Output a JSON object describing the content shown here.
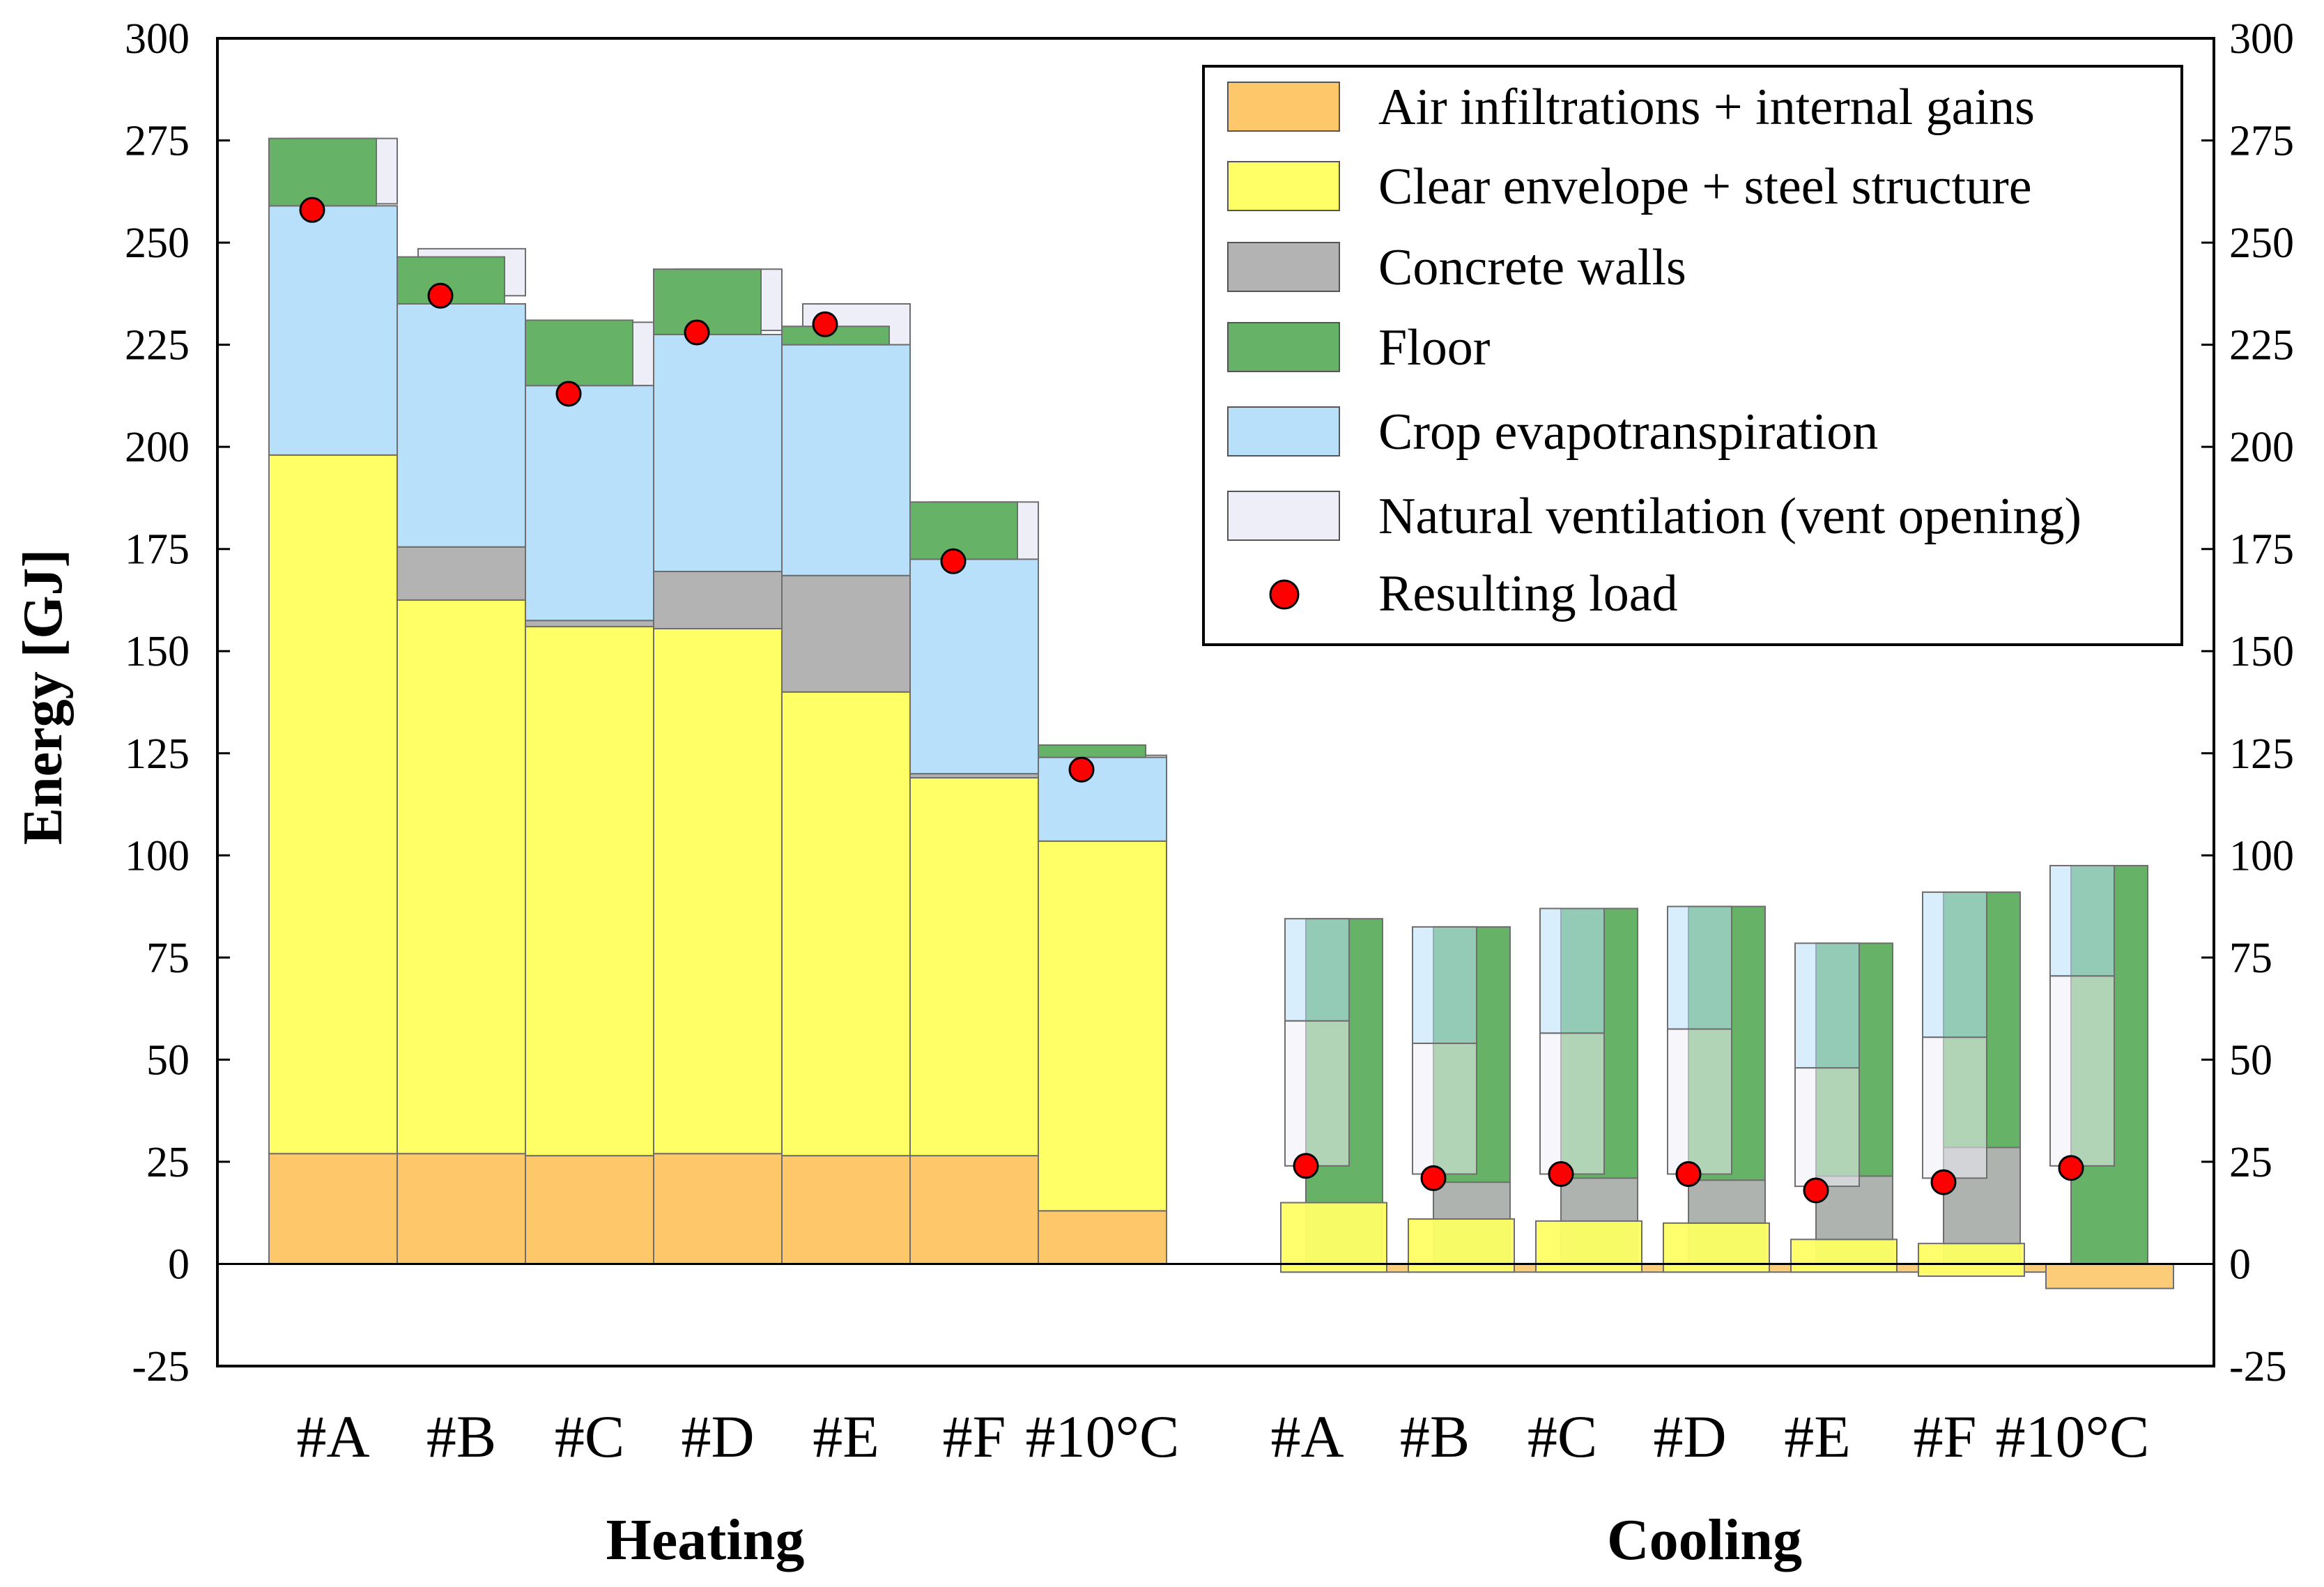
{
  "chart_data": {
    "type": "bar",
    "ylabel": "Energy [GJ]",
    "ylim": [
      -25,
      300
    ],
    "yticks": [
      300,
      275,
      250,
      225,
      200,
      175,
      150,
      125,
      100,
      75,
      50,
      25,
      0,
      -25
    ],
    "ytick_labels": [
      "300",
      "275",
      "250",
      "225",
      "200",
      "175",
      "150",
      "125",
      "100",
      "75",
      "50",
      "25",
      "0",
      "-25"
    ],
    "groups": [
      {
        "label": "Heating",
        "categories": [
          "#A",
          "#B",
          "#C",
          "#D",
          "#E",
          "#F",
          "#10°C"
        ]
      },
      {
        "label": "Cooling",
        "categories": [
          "#A",
          "#B",
          "#C",
          "#D",
          "#E",
          "#F",
          "#10°C"
        ]
      }
    ],
    "legend": {
      "position": "top-right",
      "entries": [
        {
          "label": "Air infiltrations + internal gains",
          "color": "#FDC76A"
        },
        {
          "label": "Clear envelope + steel structure",
          "color": "#FFFF66"
        },
        {
          "label": "Concrete walls",
          "color": "#B3B3B3"
        },
        {
          "label": "Floor",
          "color": "#66B266"
        },
        {
          "label": "Crop evapotranspiration",
          "color": "#B8E0FA"
        },
        {
          "label": "Natural ventilation (vent opening)",
          "color": "#EEEEF8"
        },
        {
          "label": "Resulting load",
          "color": "#FF0000"
        }
      ]
    },
    "heating": {
      "series": [
        {
          "name": "Air infiltrations + internal gains",
          "values": [
            27,
            27,
            26.5,
            27,
            26.5,
            26.5,
            13
          ]
        },
        {
          "name": "Clear envelope + steel structure",
          "values": [
            171,
            135.5,
            129.5,
            128.5,
            113.5,
            92.5,
            90.5
          ]
        },
        {
          "name": "Concrete walls",
          "values": [
            0,
            13,
            1.5,
            14,
            28.5,
            1,
            0
          ]
        },
        {
          "name": "Crop evapotranspiration",
          "values": [
            61,
            59.5,
            57.5,
            58,
            56.5,
            52.5,
            20.5
          ]
        },
        {
          "name": "Floor",
          "values": [
            16.5,
            11.5,
            16,
            16,
            4.5,
            14,
            3
          ]
        },
        {
          "name": "Natural ventilation (vent opening)",
          "values": [
            0,
            0,
            0,
            0,
            0,
            0,
            0
          ]
        }
      ],
      "ventilation_extent": [
        [
          259.5,
          275.5
        ],
        [
          237,
          248.5
        ],
        [
          215,
          230.5
        ],
        [
          228.5,
          243.5
        ],
        [
          225,
          235
        ],
        [
          172,
          186.5
        ],
        [
          121.5,
          124.5
        ]
      ],
      "resulting_load": [
        258,
        237,
        213,
        228,
        230,
        172,
        121
      ]
    },
    "cooling": {
      "air_infiltrations": [
        -2,
        -2,
        -2,
        -2,
        -2,
        -2,
        -6
      ],
      "clear_envelope": [
        15,
        11,
        10.5,
        10,
        6,
        5,
        -6
      ],
      "clear_envelope_low": [
        -2,
        -2,
        -2,
        -2,
        -2,
        -3,
        -6
      ],
      "concrete_walls": [
        0,
        9,
        10.5,
        10.5,
        15.5,
        23.5,
        0
      ],
      "floor_top": [
        84.5,
        82.5,
        87,
        87.5,
        78.5,
        91,
        97.5
      ],
      "crop_evapotranspiration": [
        [
          59.5,
          84.5
        ],
        [
          54,
          82.5
        ],
        [
          56.5,
          87
        ],
        [
          57.5,
          87.5
        ],
        [
          48,
          78.5
        ],
        [
          55.5,
          91
        ],
        [
          70.5,
          97.5
        ]
      ],
      "natural_ventilation": [
        [
          24,
          59.5
        ],
        [
          22,
          54
        ],
        [
          22,
          56.5
        ],
        [
          22,
          57.5
        ],
        [
          19,
          48
        ],
        [
          21,
          55.5
        ],
        [
          24,
          70.5
        ]
      ],
      "resulting_load": [
        24,
        21,
        22,
        22,
        18,
        20,
        23.5
      ]
    }
  }
}
